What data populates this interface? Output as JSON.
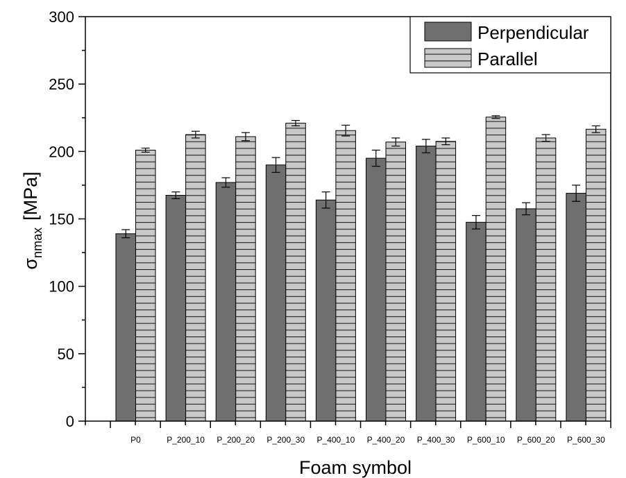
{
  "colors": {
    "perpendicular_fill": "#6f6f6f",
    "parallel_fill": "#c8c8c8",
    "axis": "#000000",
    "background": "#ffffff"
  },
  "chart_data": {
    "type": "bar",
    "xlabel": "Foam symbol",
    "ylabel_symbol": "σ",
    "ylabel_subscript": "nmax",
    "ylabel_unit": "[MPa]",
    "ylim": [
      0,
      300
    ],
    "yticks": [
      0,
      50,
      100,
      150,
      200,
      250,
      300
    ],
    "grid": false,
    "legend_position": "top-right",
    "categories": [
      "P0",
      "P_200_10",
      "P_200_20",
      "P_200_30",
      "P_400_10",
      "P_400_20",
      "P_400_30",
      "P_600_10",
      "P_600_20",
      "P_600_30"
    ],
    "series": [
      {
        "name": "Perpendicular",
        "pattern": "solid",
        "values": [
          139,
          167.5,
          177,
          190,
          164,
          195,
          204,
          147.5,
          157.5,
          169
        ],
        "errors": [
          3,
          2.5,
          3.5,
          5.5,
          6,
          6,
          5,
          5,
          4.5,
          6
        ]
      },
      {
        "name": "Parallel",
        "pattern": "horizontal-lines",
        "values": [
          201,
          212.5,
          211,
          221,
          215.5,
          207,
          207.5,
          225.5,
          210,
          216.5
        ],
        "errors": [
          1.5,
          2.5,
          3,
          2,
          4,
          3,
          2.5,
          1,
          2.5,
          2.5
        ]
      }
    ]
  }
}
